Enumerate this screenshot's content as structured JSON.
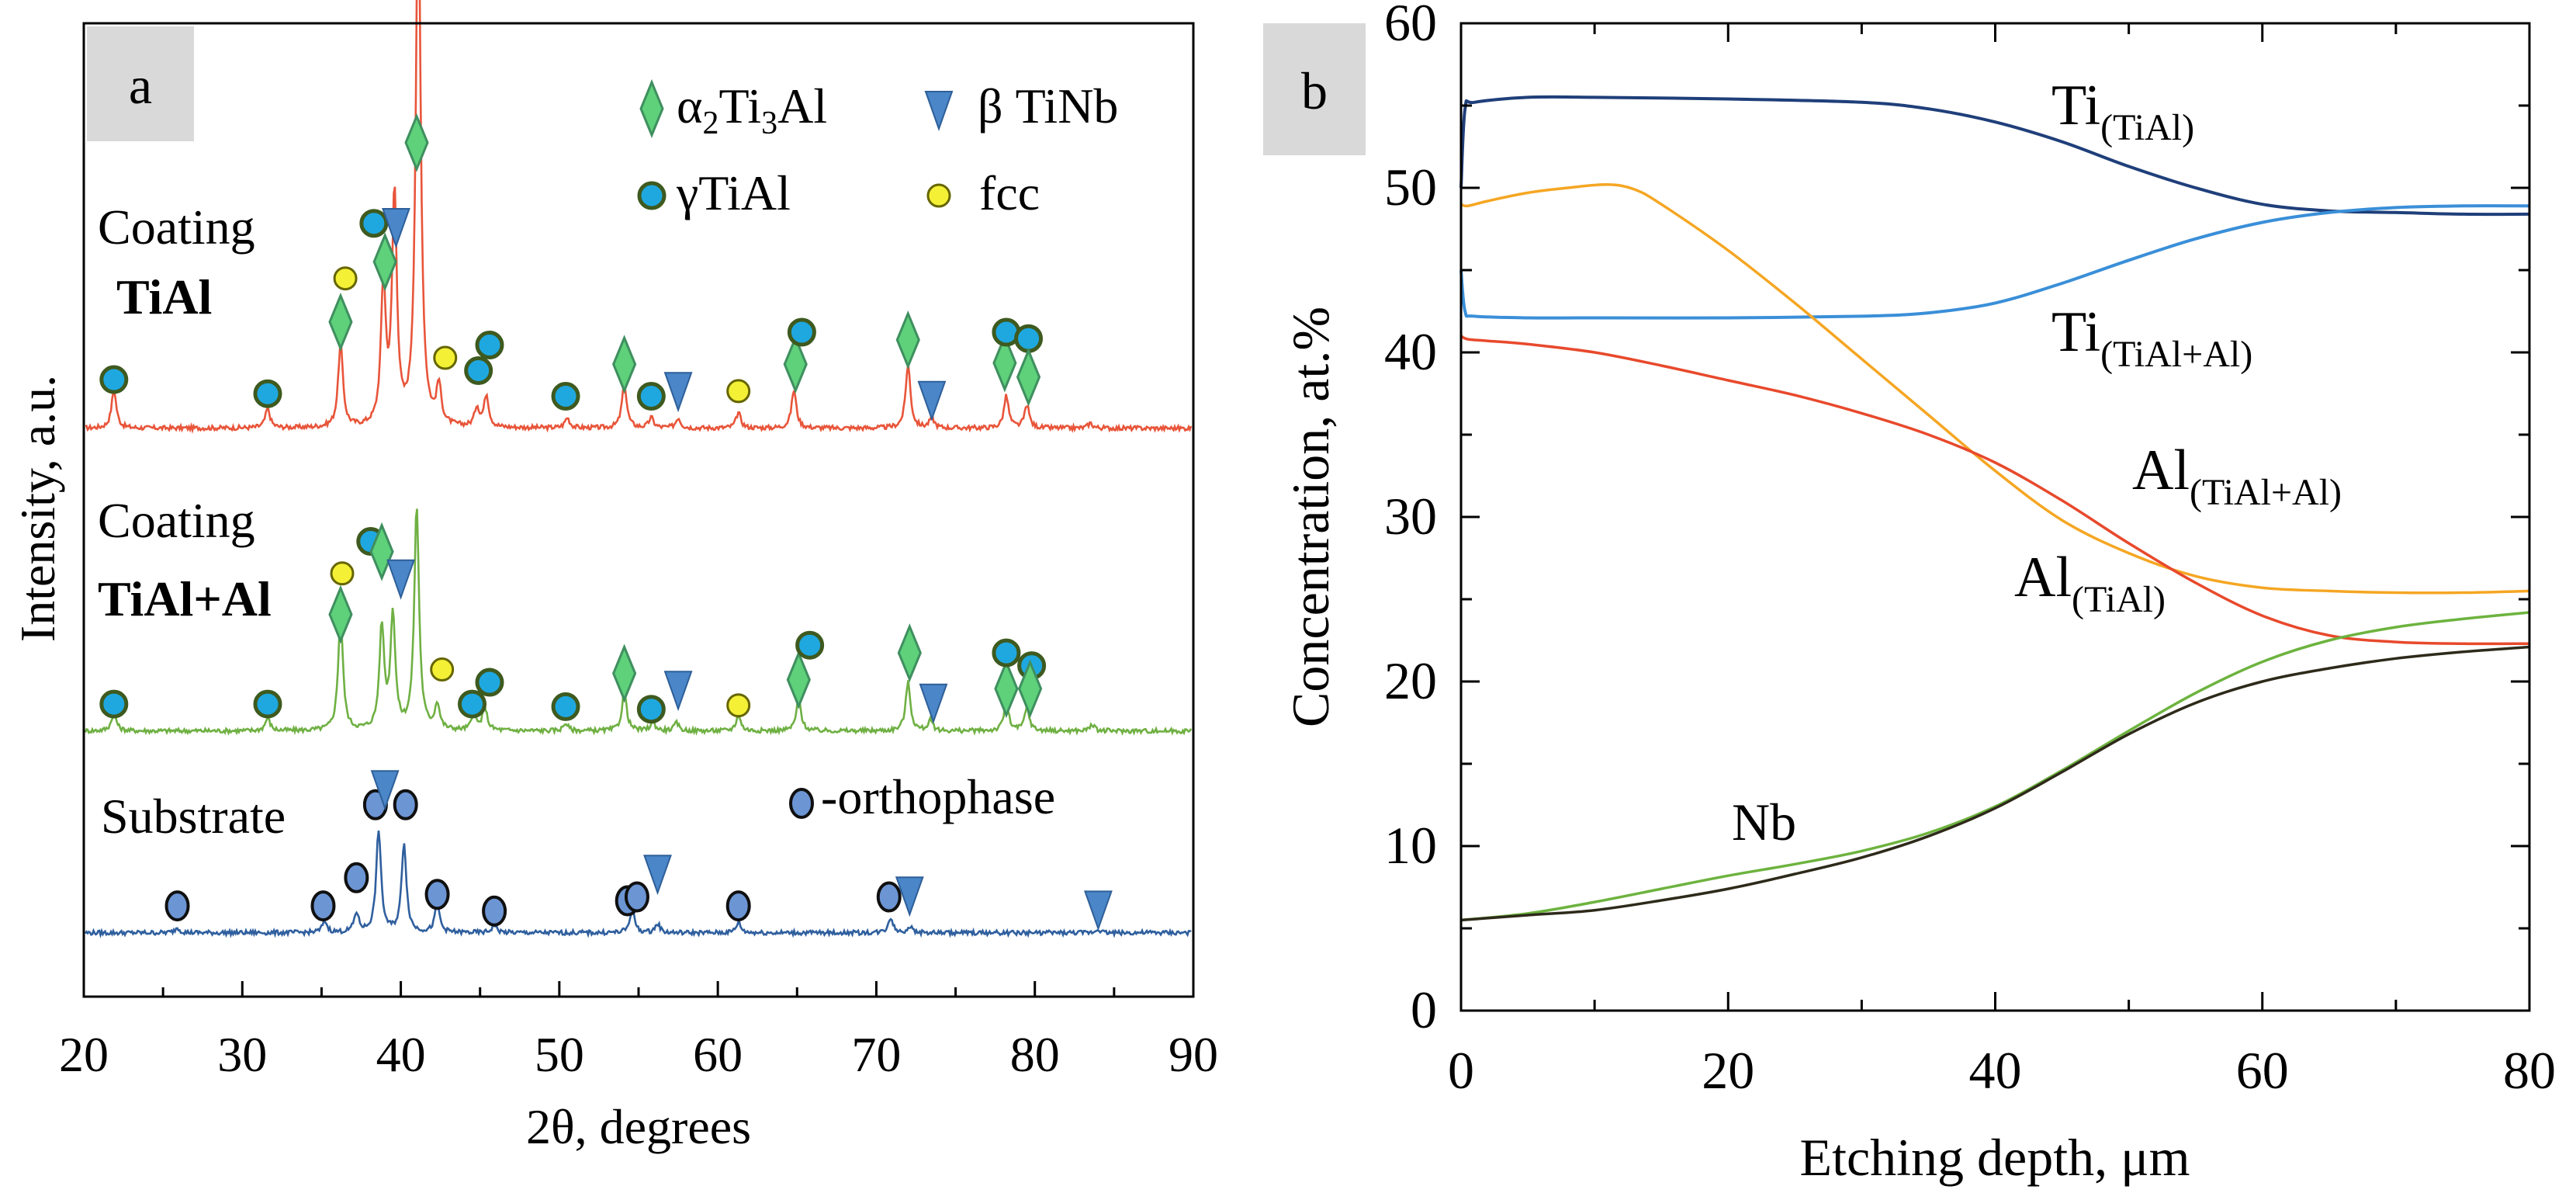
{
  "colors": {
    "tial": "#E8553A",
    "tial_al": "#6FB043",
    "substrate": "#2F5F9E",
    "ti_tial": "#1F3F7A",
    "ti_tial_al": "#3A8FD8",
    "al_tial_al": "#F5A623",
    "al_tial": "#E8492C",
    "nb_green": "#6DB33F",
    "nb_dark": "#2E2A1A",
    "marker_alpha": "#5ED17A",
    "marker_beta": "#4A86C8",
    "marker_gamma": "#1FA8E0",
    "marker_fcc": "#F4F036",
    "marker_ortho": "#6C95D4",
    "panel_label_bg": "#D9D9D9"
  },
  "chart_data": [
    {
      "type": "line",
      "panel_label": "a",
      "xlabel": "2θ, degrees",
      "ylabel": "Intensity, a.u.",
      "xlim": [
        20,
        90
      ],
      "xticks": [
        20,
        30,
        40,
        50,
        60,
        70,
        80,
        90
      ],
      "tick_labels": [
        "20",
        "30",
        "40",
        "50",
        "60",
        "70",
        "80",
        "90"
      ],
      "legend": {
        "placement": "top-right",
        "entries": [
          {
            "symbol": "diamond",
            "label_parts": [
              "α",
              "2",
              "Ti",
              "3",
              "Al"
            ]
          },
          {
            "symbol": "triangle",
            "label": "β TiNb"
          },
          {
            "symbol": "gamma-circle",
            "label": "γTiAl"
          },
          {
            "symbol": "fcc-circle",
            "label": "fcc"
          }
        ]
      },
      "annotations": {
        "ortho_legend": "-orthophase"
      },
      "series": [
        {
          "name": "Coating TiAl",
          "label_lines": [
            "Coating",
            "TiAl"
          ],
          "baseline": 0.5,
          "peaks": [
            {
              "x": 21.9,
              "h": 3
            },
            {
              "x": 31.6,
              "h": 1.5
            },
            {
              "x": 36.2,
              "h": 6.5
            },
            {
              "x": 38.9,
              "h": 11
            },
            {
              "x": 39.6,
              "h": 18
            },
            {
              "x": 41.1,
              "h": 43
            },
            {
              "x": 42.4,
              "h": 3
            },
            {
              "x": 44.8,
              "h": 1.5
            },
            {
              "x": 45.4,
              "h": 2.5
            },
            {
              "x": 50.5,
              "h": 0.8
            },
            {
              "x": 54.1,
              "h": 3.5
            },
            {
              "x": 55.8,
              "h": 0.8
            },
            {
              "x": 57.5,
              "h": 0.8
            },
            {
              "x": 61.3,
              "h": 1.2
            },
            {
              "x": 64.8,
              "h": 3
            },
            {
              "x": 72.0,
              "h": 5
            },
            {
              "x": 73.5,
              "h": 0.8
            },
            {
              "x": 78.2,
              "h": 2.5
            },
            {
              "x": 79.5,
              "h": 1.8
            },
            {
              "x": 83.5,
              "h": 0.4
            }
          ],
          "markers": [
            {
              "x": 21.9,
              "kind": "gamma",
              "y": 4.3
            },
            {
              "x": 31.6,
              "kind": "gamma",
              "y": 3.2
            },
            {
              "x": 36.2,
              "kind": "alpha",
              "y": 8.8
            },
            {
              "x": 36.5,
              "kind": "fcc",
              "y": 12.2
            },
            {
              "x": 38.3,
              "kind": "gamma",
              "y": 16.5
            },
            {
              "x": 39.0,
              "kind": "alpha",
              "y": 13.5
            },
            {
              "x": 39.7,
              "kind": "beta",
              "y": 16.3
            },
            {
              "x": 41.0,
              "kind": "alpha",
              "y": 22.8
            },
            {
              "x": 42.8,
              "kind": "fcc",
              "y": 6.0
            },
            {
              "x": 44.9,
              "kind": "gamma",
              "y": 5.0
            },
            {
              "x": 45.6,
              "kind": "gamma",
              "y": 7.0
            },
            {
              "x": 50.4,
              "kind": "gamma",
              "y": 3.0
            },
            {
              "x": 54.1,
              "kind": "alpha",
              "y": 5.5
            },
            {
              "x": 55.8,
              "kind": "gamma",
              "y": 3.0
            },
            {
              "x": 57.5,
              "kind": "beta",
              "y": 3.5
            },
            {
              "x": 61.3,
              "kind": "fcc",
              "y": 3.4
            },
            {
              "x": 64.9,
              "kind": "alpha",
              "y": 5.5
            },
            {
              "x": 65.3,
              "kind": "gamma",
              "y": 8.0
            },
            {
              "x": 72.0,
              "kind": "alpha",
              "y": 7.4
            },
            {
              "x": 73.5,
              "kind": "beta",
              "y": 2.8
            },
            {
              "x": 78.1,
              "kind": "alpha",
              "y": 5.6
            },
            {
              "x": 78.2,
              "kind": "gamma",
              "y": 8.0
            },
            {
              "x": 79.6,
              "kind": "gamma",
              "y": 7.5
            },
            {
              "x": 79.6,
              "kind": "alpha",
              "y": 4.5
            }
          ]
        },
        {
          "name": "Coating TiAl+Al",
          "label_lines": [
            "Coating",
            "TiAl+Al"
          ],
          "baseline": 0.5,
          "peaks": [
            {
              "x": 21.9,
              "h": 1.5
            },
            {
              "x": 31.6,
              "h": 1.0
            },
            {
              "x": 36.2,
              "h": 9
            },
            {
              "x": 38.8,
              "h": 8
            },
            {
              "x": 39.5,
              "h": 9
            },
            {
              "x": 41.0,
              "h": 17.5
            },
            {
              "x": 42.3,
              "h": 2
            },
            {
              "x": 44.6,
              "h": 1.2
            },
            {
              "x": 45.3,
              "h": 1.8
            },
            {
              "x": 50.4,
              "h": 0.6
            },
            {
              "x": 54.1,
              "h": 3
            },
            {
              "x": 55.9,
              "h": 0.7
            },
            {
              "x": 57.4,
              "h": 0.6
            },
            {
              "x": 61.3,
              "h": 1.2
            },
            {
              "x": 65.1,
              "h": 2.5
            },
            {
              "x": 72.0,
              "h": 3.8
            },
            {
              "x": 73.4,
              "h": 0.8
            },
            {
              "x": 78.2,
              "h": 2.2
            },
            {
              "x": 79.5,
              "h": 1.8
            },
            {
              "x": 83.6,
              "h": 0.5
            }
          ],
          "markers": [
            {
              "x": 21.9,
              "kind": "gamma",
              "y": 2.6
            },
            {
              "x": 31.6,
              "kind": "gamma",
              "y": 2.6
            },
            {
              "x": 36.2,
              "kind": "alpha",
              "y": 9.6
            },
            {
              "x": 36.3,
              "kind": "fcc",
              "y": 12.8
            },
            {
              "x": 38.1,
              "kind": "gamma",
              "y": 15.3
            },
            {
              "x": 38.8,
              "kind": "alpha",
              "y": 14.5
            },
            {
              "x": 40.0,
              "kind": "beta",
              "y": 12.5
            },
            {
              "x": 42.6,
              "kind": "fcc",
              "y": 5.3
            },
            {
              "x": 44.5,
              "kind": "gamma",
              "y": 2.6
            },
            {
              "x": 45.6,
              "kind": "gamma",
              "y": 4.3
            },
            {
              "x": 50.4,
              "kind": "gamma",
              "y": 2.4
            },
            {
              "x": 54.1,
              "kind": "alpha",
              "y": 5.0
            },
            {
              "x": 55.8,
              "kind": "gamma",
              "y": 2.2
            },
            {
              "x": 57.5,
              "kind": "beta",
              "y": 3.8
            },
            {
              "x": 61.3,
              "kind": "fcc",
              "y": 2.5
            },
            {
              "x": 65.1,
              "kind": "alpha",
              "y": 4.5
            },
            {
              "x": 65.8,
              "kind": "gamma",
              "y": 7.2
            },
            {
              "x": 72.1,
              "kind": "alpha",
              "y": 6.6
            },
            {
              "x": 73.6,
              "kind": "beta",
              "y": 2.8
            },
            {
              "x": 78.2,
              "kind": "alpha",
              "y": 3.8
            },
            {
              "x": 78.2,
              "kind": "gamma",
              "y": 6.6
            },
            {
              "x": 79.8,
              "kind": "gamma",
              "y": 5.6
            },
            {
              "x": 79.7,
              "kind": "alpha",
              "y": 3.8
            }
          ]
        },
        {
          "name": "Substrate",
          "label_lines": [
            "Substrate"
          ],
          "baseline": 0.5,
          "peaks": [
            {
              "x": 25.9,
              "h": 0.4
            },
            {
              "x": 35.2,
              "h": 0.9
            },
            {
              "x": 37.2,
              "h": 1.5
            },
            {
              "x": 38.6,
              "h": 8
            },
            {
              "x": 40.2,
              "h": 7
            },
            {
              "x": 42.3,
              "h": 2.2
            },
            {
              "x": 45.9,
              "h": 0.6
            },
            {
              "x": 54.6,
              "h": 1.8
            },
            {
              "x": 56.2,
              "h": 0.7
            },
            {
              "x": 61.3,
              "h": 0.8
            },
            {
              "x": 70.9,
              "h": 1.2
            },
            {
              "x": 72.1,
              "h": 0.5
            },
            {
              "x": 84.0,
              "h": 0.3
            }
          ],
          "markers": [
            {
              "x": 25.9,
              "kind": "ortho",
              "y": 2.6
            },
            {
              "x": 35.1,
              "kind": "ortho",
              "y": 2.6
            },
            {
              "x": 37.2,
              "kind": "ortho",
              "y": 4.8
            },
            {
              "x": 38.4,
              "kind": "ortho",
              "y": 10.5
            },
            {
              "x": 39.0,
              "kind": "beta",
              "y": 11.8
            },
            {
              "x": 40.3,
              "kind": "ortho",
              "y": 10.5
            },
            {
              "x": 42.3,
              "kind": "ortho",
              "y": 3.5
            },
            {
              "x": 45.9,
              "kind": "ortho",
              "y": 2.2
            },
            {
              "x": 54.3,
              "kind": "ortho",
              "y": 3.0
            },
            {
              "x": 54.9,
              "kind": "ortho",
              "y": 3.3
            },
            {
              "x": 56.2,
              "kind": "beta",
              "y": 5.2
            },
            {
              "x": 61.3,
              "kind": "ortho",
              "y": 2.6
            },
            {
              "x": 70.8,
              "kind": "ortho",
              "y": 3.3
            },
            {
              "x": 72.1,
              "kind": "beta",
              "y": 3.5
            },
            {
              "x": 84.0,
              "kind": "beta",
              "y": 2.4
            }
          ]
        }
      ]
    },
    {
      "type": "line",
      "panel_label": "b",
      "xlabel": "Etching depth, μm",
      "ylabel": "Concentration, at.%",
      "xlim": [
        0,
        80
      ],
      "ylim": [
        0,
        60
      ],
      "xticks": [
        0,
        20,
        40,
        60,
        80
      ],
      "yticks": [
        0,
        10,
        20,
        30,
        40,
        50,
        60
      ],
      "x_tick_labels": [
        "0",
        "20",
        "40",
        "60",
        "80"
      ],
      "y_tick_labels": [
        "0",
        "10",
        "20",
        "30",
        "40",
        "50",
        "60"
      ],
      "series": [
        {
          "key": "ti_tial",
          "label_main": "Ti",
          "label_sub": "(TiAl)",
          "x": [
            0,
            0.3,
            1,
            5,
            10,
            20,
            30,
            35,
            40,
            45,
            50,
            55,
            60,
            65,
            70,
            75,
            80
          ],
          "y": [
            50,
            54.8,
            55.2,
            55.5,
            55.5,
            55.4,
            55.2,
            54.8,
            54.0,
            52.8,
            51.3,
            50.0,
            49.0,
            48.6,
            48.5,
            48.4,
            48.4
          ]
        },
        {
          "key": "ti_tial_al",
          "label_main": "Ti",
          "label_sub": "(TiAl+Al)",
          "x": [
            0,
            0.3,
            1,
            5,
            10,
            20,
            30,
            35,
            40,
            45,
            50,
            55,
            60,
            65,
            70,
            75,
            80
          ],
          "y": [
            45,
            42.5,
            42.2,
            42.1,
            42.1,
            42.1,
            42.2,
            42.4,
            43.0,
            44.2,
            45.6,
            46.9,
            47.9,
            48.5,
            48.8,
            48.9,
            48.9
          ]
        },
        {
          "key": "al_tial_al",
          "label_main": "Al",
          "label_sub": "(TiAl+Al)",
          "x": [
            0,
            0.5,
            2,
            5,
            8,
            11,
            13,
            15,
            20,
            25,
            30,
            35,
            40,
            45,
            50,
            55,
            60,
            65,
            70,
            75,
            80
          ],
          "y": [
            49,
            48.9,
            49.2,
            49.7,
            50.0,
            50.2,
            49.9,
            49.0,
            46.2,
            43.0,
            39.6,
            36.2,
            32.8,
            29.8,
            27.8,
            26.4,
            25.7,
            25.5,
            25.4,
            25.4,
            25.5
          ]
        },
        {
          "key": "al_tial",
          "label_main": "Al",
          "label_sub": "(TiAl)",
          "x": [
            0,
            0.5,
            2,
            5,
            10,
            15,
            20,
            25,
            30,
            35,
            40,
            45,
            50,
            55,
            60,
            65,
            70,
            75,
            80
          ],
          "y": [
            41,
            40.8,
            40.7,
            40.5,
            40.0,
            39.2,
            38.3,
            37.4,
            36.3,
            35.0,
            33.3,
            31.0,
            28.4,
            26.0,
            24.0,
            22.8,
            22.4,
            22.3,
            22.3
          ]
        },
        {
          "key": "nb_green",
          "label_main": "Nb",
          "label_sub": "",
          "x": [
            0,
            5,
            10,
            15,
            20,
            25,
            30,
            35,
            40,
            45,
            50,
            55,
            60,
            65,
            70,
            75,
            80
          ],
          "y": [
            5.5,
            5.9,
            6.6,
            7.4,
            8.2,
            8.9,
            9.7,
            10.8,
            12.4,
            14.6,
            17.0,
            19.3,
            21.2,
            22.5,
            23.3,
            23.8,
            24.2
          ]
        },
        {
          "key": "nb_dark",
          "label_main": "",
          "label_sub": "",
          "x": [
            0,
            5,
            10,
            15,
            20,
            25,
            30,
            35,
            40,
            45,
            50,
            55,
            60,
            65,
            70,
            75,
            80
          ],
          "y": [
            5.5,
            5.8,
            6.1,
            6.7,
            7.4,
            8.3,
            9.3,
            10.6,
            12.3,
            14.5,
            16.8,
            18.7,
            20.0,
            20.8,
            21.4,
            21.8,
            22.1
          ]
        }
      ]
    }
  ]
}
